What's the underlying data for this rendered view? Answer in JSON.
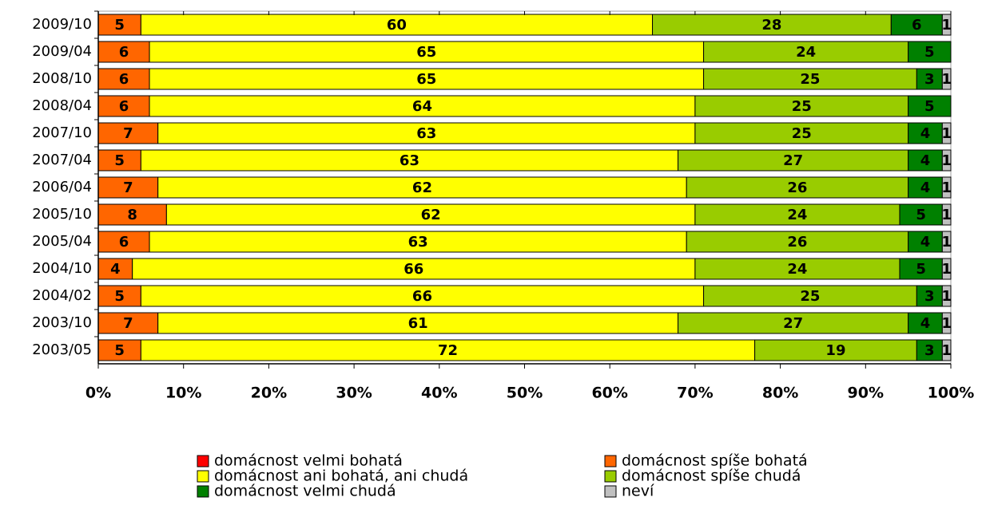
{
  "chart_data": {
    "type": "stacked-bar-horizontal",
    "categories": [
      "2009/10",
      "2009/04",
      "2008/10",
      "2008/04",
      "2007/10",
      "2007/04",
      "2006/04",
      "2005/10",
      "2005/04",
      "2004/10",
      "2004/02",
      "2003/10",
      "2003/05"
    ],
    "series": [
      {
        "name": "domácnost velmi bohatá",
        "color": "#ff0000",
        "values": [
          0,
          0,
          0,
          0,
          0,
          0,
          0,
          0,
          0,
          0,
          0,
          0,
          0
        ]
      },
      {
        "name": "domácnost spíše bohatá",
        "color": "#ff6600",
        "values": [
          5,
          6,
          6,
          6,
          7,
          5,
          7,
          8,
          6,
          4,
          5,
          7,
          5
        ]
      },
      {
        "name": "domácnost ani bohatá, ani chudá",
        "color": "#ffff00",
        "values": [
          60,
          65,
          65,
          64,
          63,
          63,
          62,
          62,
          63,
          66,
          66,
          61,
          72
        ]
      },
      {
        "name": "domácnost spíše chudá",
        "color": "#99cc00",
        "values": [
          28,
          24,
          25,
          25,
          25,
          27,
          26,
          24,
          26,
          24,
          25,
          27,
          19
        ]
      },
      {
        "name": "domácnost velmi chudá",
        "color": "#008000",
        "values": [
          6,
          5,
          3,
          5,
          4,
          4,
          4,
          5,
          4,
          5,
          3,
          4,
          3
        ]
      },
      {
        "name": "neví",
        "color": "#c0c0c0",
        "values": [
          1,
          0,
          1,
          0,
          1,
          1,
          1,
          1,
          1,
          1,
          1,
          1,
          1
        ]
      }
    ],
    "xlim": [
      0,
      100
    ],
    "xticks": [
      {
        "value": 0,
        "label": "0%"
      },
      {
        "value": 10,
        "label": "10%"
      },
      {
        "value": 20,
        "label": "20%"
      },
      {
        "value": 30,
        "label": "30%"
      },
      {
        "value": 40,
        "label": "40%"
      },
      {
        "value": 50,
        "label": "50%"
      },
      {
        "value": 60,
        "label": "60%"
      },
      {
        "value": 70,
        "label": "70%"
      },
      {
        "value": 80,
        "label": "80%"
      },
      {
        "value": 90,
        "label": "90%"
      },
      {
        "value": 100,
        "label": "100%"
      }
    ]
  }
}
